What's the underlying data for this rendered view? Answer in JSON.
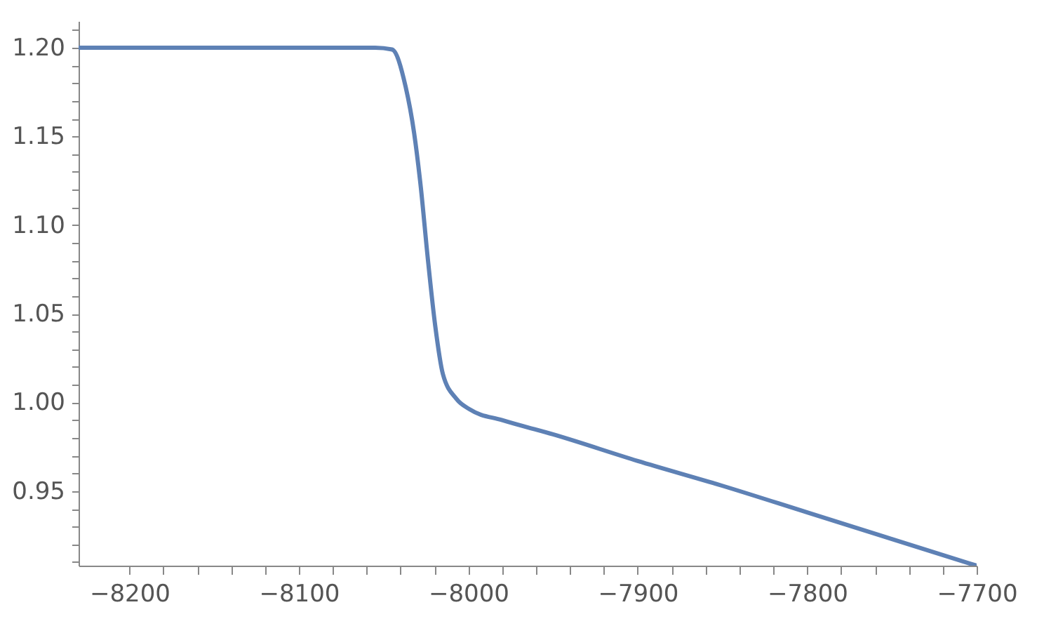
{
  "chart_data": {
    "type": "line",
    "x": [
      -8230,
      -8100,
      -8055,
      -8045,
      -8037,
      -8032,
      -8028,
      -8024,
      -8019.5,
      -8015,
      -8007,
      -7999,
      -7980,
      -7950,
      -7900,
      -7850,
      -7800,
      -7750,
      -7700
    ],
    "series": [
      {
        "color": "#5e81b5",
        "values": [
          1.2,
          1.2,
          1.2,
          1.199,
          1.178,
          1.152,
          1.121,
          1.082,
          1.043,
          1.016,
          1.002,
          0.996,
          0.99,
          0.982,
          0.967,
          0.953,
          0.938,
          0.923,
          0.908
        ]
      }
    ],
    "xlim": [
      -8230,
      -7700
    ],
    "xticks": [
      -8200,
      {
        "value": -8180,
        "label": null
      },
      {
        "value": -8160,
        "label": null
      },
      {
        "value": -8140,
        "label": null
      },
      {
        "value": -8120,
        "label": null
      },
      -8100,
      {
        "value": -8080,
        "label": null
      },
      {
        "value": -8060,
        "label": null
      },
      {
        "value": -8040,
        "label": null
      },
      {
        "value": -8020,
        "label": null
      },
      -8000,
      {
        "value": -7980,
        "label": null
      },
      {
        "value": -7960,
        "label": null
      },
      {
        "value": -7940,
        "label": null
      },
      {
        "value": -7920,
        "label": null
      },
      -7900,
      {
        "value": -7880,
        "label": null
      },
      {
        "value": -7860,
        "label": null
      },
      {
        "value": -7840,
        "label": null
      },
      {
        "value": -7820,
        "label": null
      },
      -7800,
      {
        "value": -7780,
        "label": null
      },
      {
        "value": -7760,
        "label": null
      },
      {
        "value": -7740,
        "label": null
      },
      {
        "value": -7720,
        "label": null
      },
      -7700
    ],
    "ylim": [
      0.908,
      1.215
    ],
    "yticks": [
      {
        "value": 0.91,
        "label": null
      },
      {
        "value": 0.92,
        "label": null
      },
      {
        "value": 0.93,
        "label": null
      },
      {
        "value": 0.94,
        "label": null
      },
      {
        "value": 0.95,
        "label": "0.95"
      },
      {
        "value": 0.96,
        "label": null
      },
      {
        "value": 0.97,
        "label": null
      },
      {
        "value": 0.98,
        "label": null
      },
      {
        "value": 0.99,
        "label": null
      },
      {
        "value": 1,
        "label": "1.00"
      },
      {
        "value": 1.01,
        "label": null
      },
      {
        "value": 1.02,
        "label": null
      },
      {
        "value": 1.03,
        "label": null
      },
      {
        "value": 1.04,
        "label": null
      },
      {
        "value": 1.05,
        "label": "1.05"
      },
      {
        "value": 1.06,
        "label": null
      },
      {
        "value": 1.07,
        "label": null
      },
      {
        "value": 1.08,
        "label": null
      },
      {
        "value": 1.09,
        "label": null
      },
      {
        "value": 1.1,
        "label": "1.10"
      },
      {
        "value": 1.11,
        "label": null
      },
      {
        "value": 1.12,
        "label": null
      },
      {
        "value": 1.13,
        "label": null
      },
      {
        "value": 1.14,
        "label": null
      },
      {
        "value": 1.15,
        "label": "1.15"
      },
      {
        "value": 1.16,
        "label": null
      },
      {
        "value": 1.17,
        "label": null
      },
      {
        "value": 1.18,
        "label": null
      },
      {
        "value": 1.19,
        "label": null
      },
      {
        "value": 1.2,
        "label": "1.20"
      },
      {
        "value": 1.21,
        "label": null
      }
    ],
    "grid": false,
    "marker": "none",
    "line_style": "solid"
  }
}
